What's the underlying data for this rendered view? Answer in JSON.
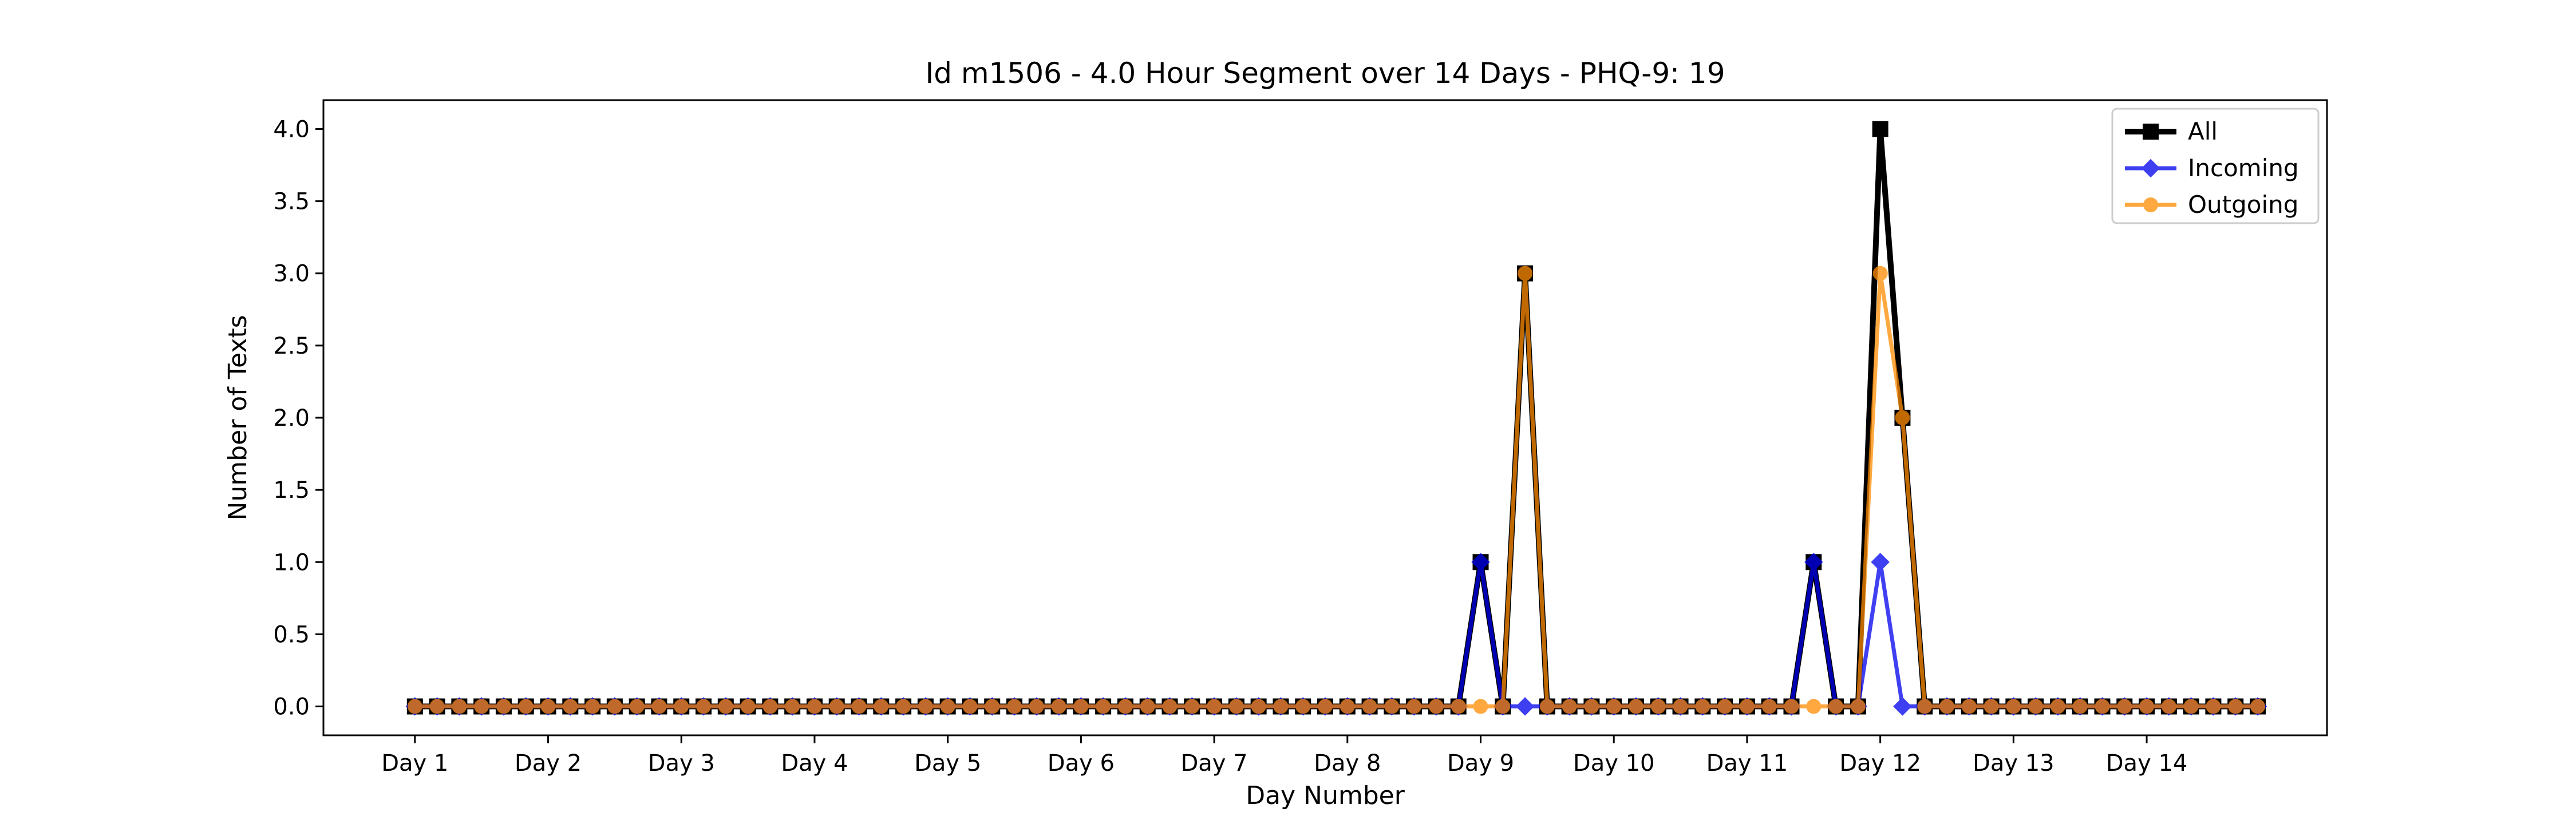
{
  "chart_data": {
    "type": "line",
    "title": "Id m1506 - 4.0 Hour Segment over 14 Days - PHQ-9: 19",
    "xlabel": "Day Number",
    "ylabel": "Number of Texts",
    "x_tick_labels": [
      "Day 1",
      "Day 2",
      "Day 3",
      "Day 4",
      "Day 5",
      "Day 6",
      "Day 7",
      "Day 8",
      "Day 9",
      "Day 10",
      "Day 11",
      "Day 12",
      "Day 13",
      "Day 14"
    ],
    "x_tick_positions": [
      0,
      6,
      12,
      18,
      24,
      30,
      36,
      42,
      48,
      54,
      60,
      66,
      72,
      78
    ],
    "x_range": [
      -4.12,
      86.12
    ],
    "ylim": [
      -0.2,
      4.2
    ],
    "y_ticks": [
      0.0,
      0.5,
      1.0,
      1.5,
      2.0,
      2.5,
      3.0,
      3.5,
      4.0
    ],
    "y_tick_labels": [
      "0.0",
      "0.5",
      "1.0",
      "1.5",
      "2.0",
      "2.5",
      "3.0",
      "3.5",
      "4.0"
    ],
    "x": [
      0,
      1,
      2,
      3,
      4,
      5,
      6,
      7,
      8,
      9,
      10,
      11,
      12,
      13,
      14,
      15,
      16,
      17,
      18,
      19,
      20,
      21,
      22,
      23,
      24,
      25,
      26,
      27,
      28,
      29,
      30,
      31,
      32,
      33,
      34,
      35,
      36,
      37,
      38,
      39,
      40,
      41,
      42,
      43,
      44,
      45,
      46,
      47,
      48,
      49,
      50,
      51,
      52,
      53,
      54,
      55,
      56,
      57,
      58,
      59,
      60,
      61,
      62,
      63,
      64,
      65,
      66,
      67,
      68,
      69,
      70,
      71,
      72,
      73,
      74,
      75,
      76,
      77,
      78,
      79,
      80,
      81,
      82,
      83
    ],
    "series": [
      {
        "name": "All",
        "color": "#000000",
        "marker": "square",
        "values": [
          0,
          0,
          0,
          0,
          0,
          0,
          0,
          0,
          0,
          0,
          0,
          0,
          0,
          0,
          0,
          0,
          0,
          0,
          0,
          0,
          0,
          0,
          0,
          0,
          0,
          0,
          0,
          0,
          0,
          0,
          0,
          0,
          0,
          0,
          0,
          0,
          0,
          0,
          0,
          0,
          0,
          0,
          0,
          0,
          0,
          0,
          0,
          0,
          1,
          0,
          3,
          0,
          0,
          0,
          0,
          0,
          0,
          0,
          0,
          0,
          0,
          0,
          0,
          1,
          0,
          0,
          4,
          2,
          0,
          0,
          0,
          0,
          0,
          0,
          0,
          0,
          0,
          0,
          0,
          0,
          0,
          0,
          0,
          0
        ]
      },
      {
        "name": "Incoming",
        "color": "#0000ee",
        "marker": "diamond",
        "values": [
          0,
          0,
          0,
          0,
          0,
          0,
          0,
          0,
          0,
          0,
          0,
          0,
          0,
          0,
          0,
          0,
          0,
          0,
          0,
          0,
          0,
          0,
          0,
          0,
          0,
          0,
          0,
          0,
          0,
          0,
          0,
          0,
          0,
          0,
          0,
          0,
          0,
          0,
          0,
          0,
          0,
          0,
          0,
          0,
          0,
          0,
          0,
          0,
          1,
          0,
          0,
          0,
          0,
          0,
          0,
          0,
          0,
          0,
          0,
          0,
          0,
          0,
          0,
          1,
          0,
          0,
          1,
          0,
          0,
          0,
          0,
          0,
          0,
          0,
          0,
          0,
          0,
          0,
          0,
          0,
          0,
          0,
          0,
          0
        ]
      },
      {
        "name": "Outgoing",
        "color": "#ff8c00",
        "marker": "circle",
        "values": [
          0,
          0,
          0,
          0,
          0,
          0,
          0,
          0,
          0,
          0,
          0,
          0,
          0,
          0,
          0,
          0,
          0,
          0,
          0,
          0,
          0,
          0,
          0,
          0,
          0,
          0,
          0,
          0,
          0,
          0,
          0,
          0,
          0,
          0,
          0,
          0,
          0,
          0,
          0,
          0,
          0,
          0,
          0,
          0,
          0,
          0,
          0,
          0,
          0,
          0,
          3,
          0,
          0,
          0,
          0,
          0,
          0,
          0,
          0,
          0,
          0,
          0,
          0,
          0,
          0,
          0,
          3,
          2,
          0,
          0,
          0,
          0,
          0,
          0,
          0,
          0,
          0,
          0,
          0,
          0,
          0,
          0,
          0,
          0
        ]
      }
    ],
    "legend_position": "top-right",
    "grid": false
  }
}
